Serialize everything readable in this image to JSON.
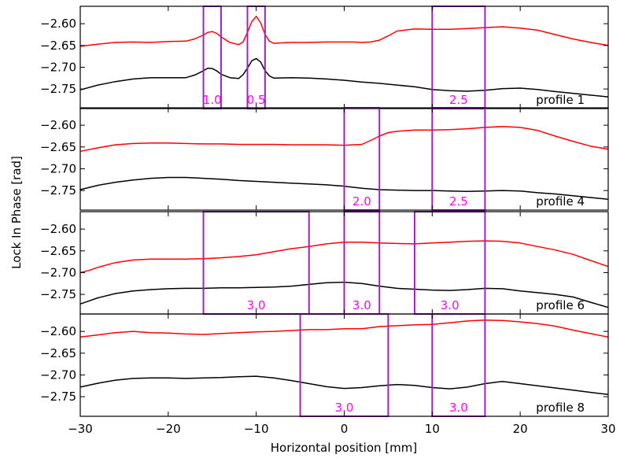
{
  "chart_data": {
    "type": "line",
    "xlabel": "Horizontal position [mm]",
    "ylabel": "Lock In Phase [rad]",
    "xlim": [
      -30,
      30
    ],
    "ylim": [
      -2.795,
      -2.56
    ],
    "x_ticks": [
      -30,
      -20,
      -10,
      0,
      10,
      20,
      30
    ],
    "x_tick_labels": [
      "−30",
      "−20",
      "−10",
      "0",
      "10",
      "20",
      "30"
    ],
    "y_ticks": [
      -2.6,
      -2.65,
      -2.7,
      -2.75
    ],
    "y_tick_labels": [
      "−2.60",
      "−2.65",
      "−2.70",
      "−2.75"
    ],
    "grid": false,
    "colors": {
      "red_series": "#ff0000",
      "black_series": "#000000",
      "boxes": "#a020c8",
      "box_labels": "#ff00ff"
    },
    "panels": [
      {
        "profile_label": "profile 1",
        "series": [
          {
            "color": "#ff0000",
            "x": [
              -30,
              -28,
              -26,
              -24,
              -22,
              -20,
              -18,
              -17,
              -16,
              -15.5,
              -15,
              -14.5,
              -14,
              -13,
              -12,
              -11.5,
              -11,
              -10.5,
              -10,
              -9.5,
              -9,
              -8.5,
              -8,
              -6,
              -4,
              -2,
              0,
              1,
              2,
              3,
              4,
              5,
              6,
              8,
              10,
              12,
              14,
              16,
              18,
              20,
              22,
              24,
              26,
              28,
              30
            ],
            "y": [
              -2.652,
              -2.647,
              -2.643,
              -2.642,
              -2.643,
              -2.641,
              -2.64,
              -2.635,
              -2.626,
              -2.62,
              -2.618,
              -2.622,
              -2.63,
              -2.643,
              -2.648,
              -2.642,
              -2.62,
              -2.595,
              -2.583,
              -2.598,
              -2.625,
              -2.64,
              -2.645,
              -2.643,
              -2.643,
              -2.642,
              -2.642,
              -2.642,
              -2.643,
              -2.642,
              -2.638,
              -2.628,
              -2.617,
              -2.612,
              -2.613,
              -2.613,
              -2.611,
              -2.609,
              -2.607,
              -2.61,
              -2.615,
              -2.625,
              -2.635,
              -2.643,
              -2.65
            ]
          },
          {
            "color": "#000000",
            "x": [
              -30,
              -28,
              -26,
              -24,
              -22,
              -20,
              -18,
              -17,
              -16,
              -15.5,
              -15,
              -14.5,
              -14,
              -13,
              -12,
              -11.5,
              -11,
              -10.5,
              -10,
              -9.5,
              -9,
              -8.5,
              -8,
              -6,
              -4,
              -2,
              0,
              2,
              4,
              6,
              8,
              10,
              12,
              14,
              16,
              18,
              20,
              22,
              24,
              26,
              28,
              30
            ],
            "y": [
              -2.752,
              -2.741,
              -2.733,
              -2.727,
              -2.724,
              -2.724,
              -2.724,
              -2.718,
              -2.708,
              -2.702,
              -2.703,
              -2.708,
              -2.716,
              -2.724,
              -2.726,
              -2.717,
              -2.702,
              -2.685,
              -2.68,
              -2.688,
              -2.708,
              -2.72,
              -2.725,
              -2.724,
              -2.725,
              -2.727,
              -2.73,
              -2.734,
              -2.737,
              -2.741,
              -2.745,
              -2.751,
              -2.754,
              -2.755,
              -2.753,
              -2.749,
              -2.748,
              -2.751,
              -2.756,
              -2.76,
              -2.764,
              -2.768
            ]
          }
        ],
        "boxes": [
          {
            "x0": -16,
            "x1": -14,
            "label": "1.0"
          },
          {
            "x0": -11,
            "x1": -9,
            "label": "0.5"
          },
          {
            "x0": 10,
            "x1": 16,
            "label": "2.5"
          }
        ]
      },
      {
        "profile_label": "profile 4",
        "series": [
          {
            "color": "#ff0000",
            "x": [
              -30,
              -28,
              -26,
              -24,
              -22,
              -20,
              -18,
              -16,
              -14,
              -12,
              -10,
              -8,
              -6,
              -4,
              -2,
              0,
              2,
              3,
              4,
              5,
              6,
              8,
              10,
              12,
              14,
              16,
              18,
              20,
              22,
              24,
              26,
              28,
              30
            ],
            "y": [
              -2.66,
              -2.652,
              -2.645,
              -2.642,
              -2.641,
              -2.641,
              -2.642,
              -2.643,
              -2.643,
              -2.644,
              -2.644,
              -2.644,
              -2.645,
              -2.645,
              -2.645,
              -2.646,
              -2.644,
              -2.635,
              -2.625,
              -2.617,
              -2.614,
              -2.611,
              -2.611,
              -2.61,
              -2.608,
              -2.605,
              -2.603,
              -2.605,
              -2.612,
              -2.625,
              -2.637,
              -2.648,
              -2.655
            ]
          },
          {
            "color": "#000000",
            "x": [
              -30,
              -28,
              -26,
              -24,
              -22,
              -20,
              -18,
              -16,
              -14,
              -12,
              -10,
              -8,
              -6,
              -4,
              -2,
              0,
              2,
              4,
              6,
              8,
              10,
              12,
              14,
              16,
              18,
              20,
              22,
              24,
              26,
              28,
              30
            ],
            "y": [
              -2.748,
              -2.738,
              -2.731,
              -2.726,
              -2.722,
              -2.72,
              -2.72,
              -2.722,
              -2.724,
              -2.727,
              -2.729,
              -2.731,
              -2.733,
              -2.735,
              -2.737,
              -2.74,
              -2.745,
              -2.748,
              -2.749,
              -2.75,
              -2.75,
              -2.751,
              -2.752,
              -2.751,
              -2.75,
              -2.751,
              -2.755,
              -2.758,
              -2.762,
              -2.766,
              -2.77
            ]
          }
        ],
        "boxes": [
          {
            "x0": 0,
            "x1": 4,
            "label": "2.0"
          },
          {
            "x0": 10,
            "x1": 16,
            "label": "2.5"
          }
        ]
      },
      {
        "profile_label": "profile 6",
        "series": [
          {
            "color": "#ff0000",
            "x": [
              -30,
              -29,
              -28,
              -26,
              -24,
              -22,
              -20,
              -18,
              -16,
              -14,
              -12,
              -10,
              -8,
              -6,
              -4,
              -2,
              0,
              2,
              4,
              6,
              8,
              10,
              12,
              14,
              16,
              18,
              20,
              22,
              24,
              26,
              28,
              30
            ],
            "y": [
              -2.7,
              -2.695,
              -2.688,
              -2.677,
              -2.671,
              -2.669,
              -2.669,
              -2.669,
              -2.668,
              -2.666,
              -2.663,
              -2.659,
              -2.652,
              -2.645,
              -2.64,
              -2.634,
              -2.63,
              -2.63,
              -2.632,
              -2.633,
              -2.634,
              -2.632,
              -2.63,
              -2.628,
              -2.627,
              -2.628,
              -2.632,
              -2.64,
              -2.648,
              -2.658,
              -2.672,
              -2.686
            ]
          },
          {
            "color": "#000000",
            "x": [
              -30,
              -28,
              -26,
              -24,
              -22,
              -20,
              -18,
              -16,
              -14,
              -12,
              -10,
              -8,
              -6,
              -4,
              -2,
              0,
              2,
              4,
              6,
              8,
              10,
              12,
              14,
              16,
              18,
              20,
              22,
              24,
              26,
              28,
              30
            ],
            "y": [
              -2.772,
              -2.758,
              -2.748,
              -2.742,
              -2.739,
              -2.737,
              -2.736,
              -2.736,
              -2.735,
              -2.735,
              -2.734,
              -2.733,
              -2.731,
              -2.727,
              -2.723,
              -2.722,
              -2.725,
              -2.731,
              -2.736,
              -2.738,
              -2.74,
              -2.741,
              -2.739,
              -2.736,
              -2.737,
              -2.742,
              -2.746,
              -2.75,
              -2.756,
              -2.768,
              -2.78
            ]
          }
        ],
        "boxes": [
          {
            "x0": -16,
            "x1": -4,
            "label": "3.0"
          },
          {
            "x0": 0,
            "x1": 4,
            "label": "3.0"
          },
          {
            "x0": 8,
            "x1": 16,
            "label": "3.0"
          }
        ]
      },
      {
        "profile_label": "profile 8",
        "series": [
          {
            "color": "#ff0000",
            "x": [
              -30,
              -28,
              -26,
              -24,
              -22,
              -20,
              -18,
              -16,
              -14,
              -12,
              -10,
              -8,
              -6,
              -4,
              -2,
              0,
              2,
              4,
              6,
              8,
              10,
              12,
              14,
              16,
              18,
              20,
              22,
              24,
              26,
              28,
              30
            ],
            "y": [
              -2.613,
              -2.608,
              -2.603,
              -2.6,
              -2.603,
              -2.604,
              -2.606,
              -2.607,
              -2.605,
              -2.603,
              -2.601,
              -2.6,
              -2.598,
              -2.596,
              -2.596,
              -2.594,
              -2.594,
              -2.589,
              -2.587,
              -2.585,
              -2.584,
              -2.58,
              -2.576,
              -2.574,
              -2.575,
              -2.578,
              -2.582,
              -2.588,
              -2.597,
              -2.605,
              -2.613
            ]
          },
          {
            "color": "#000000",
            "x": [
              -30,
              -28,
              -26,
              -24,
              -22,
              -20,
              -18,
              -16,
              -14,
              -12,
              -10,
              -8,
              -6,
              -4,
              -2,
              0,
              2,
              4,
              6,
              8,
              10,
              12,
              14,
              16,
              18,
              20,
              22,
              24,
              26,
              28,
              30
            ],
            "y": [
              -2.728,
              -2.719,
              -2.712,
              -2.708,
              -2.707,
              -2.707,
              -2.708,
              -2.707,
              -2.706,
              -2.704,
              -2.703,
              -2.707,
              -2.713,
              -2.72,
              -2.727,
              -2.731,
              -2.729,
              -2.725,
              -2.722,
              -2.724,
              -2.729,
              -2.732,
              -2.728,
              -2.72,
              -2.715,
              -2.72,
              -2.725,
              -2.73,
              -2.735,
              -2.74,
              -2.745
            ]
          }
        ],
        "boxes": [
          {
            "x0": -5,
            "x1": 5,
            "label": "3.0"
          },
          {
            "x0": 10,
            "x1": 16,
            "label": "3.0"
          }
        ]
      }
    ]
  }
}
